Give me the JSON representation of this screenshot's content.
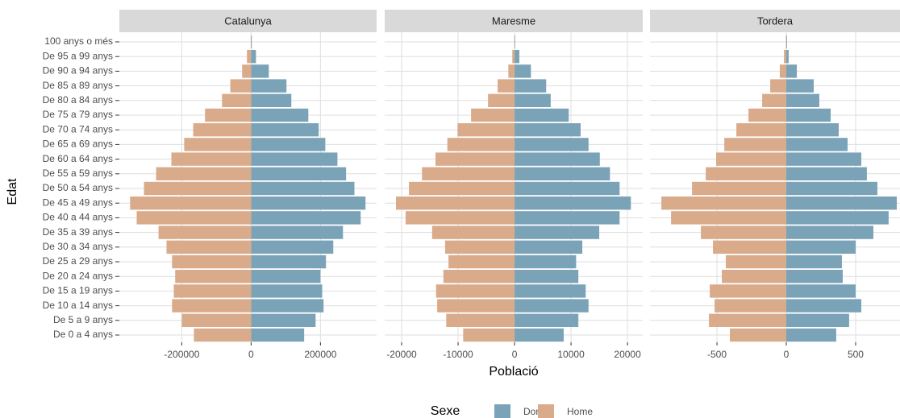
{
  "shared": {
    "x_label": "Població",
    "y_label": "Edat",
    "legend_title": "Sexe"
  },
  "chart_data": [
    {
      "type": "bar",
      "title": "Catalunya",
      "categories": [
        "100 anys o més",
        "De 95 a 99 anys",
        "De 90 a 94 anys",
        "De 85 a 89 anys",
        "De 80 a 84 anys",
        "De 75 a 79 anys",
        "De 70 a 74 anys",
        "De 65 a 69 anys",
        "De 60 a 64 anys",
        "De 55 a 59 anys",
        "De 50 a 54 anys",
        "De 45 a 49 anys",
        "De 40 a 44 anys",
        "De 35 a 39 anys",
        "De 30 a 34 anys",
        "De 25 a 29 anys",
        "De 20 a 24 anys",
        "De 15 a 19 anys",
        "De 10 a 14 anys",
        "De 5 a 9 anys",
        "De 0 a 4 anys"
      ],
      "series": [
        {
          "name": "Dona",
          "color": "#7ba3b8",
          "values": [
            2000,
            14000,
            51000,
            102000,
            116000,
            165000,
            195000,
            214000,
            249000,
            274000,
            298000,
            330000,
            316000,
            265000,
            237000,
            216000,
            200000,
            205000,
            209000,
            186000,
            153000
          ]
        },
        {
          "name": "Home",
          "color": "#d9ab8b",
          "values": [
            -1000,
            -12000,
            -26000,
            -60000,
            -84000,
            -133000,
            -167000,
            -193000,
            -230000,
            -274000,
            -309000,
            -349000,
            -330000,
            -267000,
            -244000,
            -228000,
            -219000,
            -223000,
            -228000,
            -200000,
            -165000
          ]
        }
      ],
      "xlim": [
        -380000,
        362000
      ],
      "xticks": [
        -200000,
        0,
        200000
      ],
      "grid": true
    },
    {
      "type": "bar",
      "title": "Maresme",
      "categories": [
        "100 anys o més",
        "De 95 a 99 anys",
        "De 90 a 94 anys",
        "De 85 a 89 anys",
        "De 80 a 84 anys",
        "De 75 a 79 anys",
        "De 70 a 74 anys",
        "De 65 a 69 anys",
        "De 60 a 64 anys",
        "De 55 a 59 anys",
        "De 50 a 54 anys",
        "De 45 a 49 anys",
        "De 40 a 44 anys",
        "De 35 a 39 anys",
        "De 30 a 34 anys",
        "De 25 a 29 anys",
        "De 20 a 24 anys",
        "De 15 a 19 anys",
        "De 10 a 14 anys",
        "De 5 a 9 anys",
        "De 0 a 4 anys"
      ],
      "series": [
        {
          "name": "Dona",
          "color": "#7ba3b8",
          "values": [
            100,
            850,
            2900,
            5600,
            6400,
            9600,
            11700,
            13100,
            15100,
            16900,
            18600,
            20600,
            18600,
            15000,
            12000,
            10900,
            11300,
            12600,
            13100,
            11300,
            8700
          ]
        },
        {
          "name": "Home",
          "color": "#d9ab8b",
          "values": [
            -50,
            -400,
            -1100,
            -3000,
            -4700,
            -7700,
            -10100,
            -11900,
            -14000,
            -16400,
            -18700,
            -21000,
            -19300,
            -14600,
            -12300,
            -11700,
            -12600,
            -13900,
            -13700,
            -12100,
            -9100
          ]
        }
      ],
      "xlim": [
        -23000,
        22700
      ],
      "xticks": [
        -20000,
        -10000,
        0,
        10000,
        20000
      ],
      "grid": true
    },
    {
      "type": "bar",
      "title": "Tordera",
      "categories": [
        "100 anys o més",
        "De 95 a 99 anys",
        "De 90 a 94 anys",
        "De 85 a 89 anys",
        "De 80 a 84 anys",
        "De 75 a 79 anys",
        "De 70 a 74 anys",
        "De 65 a 69 anys",
        "De 60 a 64 anys",
        "De 55 a 59 anys",
        "De 50 a 54 anys",
        "De 45 a 49 anys",
        "De 40 a 44 anys",
        "De 35 a 39 anys",
        "De 30 a 34 anys",
        "De 25 a 29 anys",
        "De 20 a 24 anys",
        "De 15 a 19 anys",
        "De 10 a 14 anys",
        "De 5 a 9 anys",
        "De 0 a 4 anys"
      ],
      "series": [
        {
          "name": "Dona",
          "color": "#7ba3b8",
          "values": [
            5,
            17,
            76,
            198,
            238,
            320,
            378,
            442,
            541,
            581,
            657,
            797,
            738,
            628,
            500,
            401,
            407,
            500,
            541,
            453,
            360
          ]
        },
        {
          "name": "Home",
          "color": "#d9ab8b",
          "values": [
            -2,
            -17,
            -47,
            -116,
            -174,
            -273,
            -360,
            -447,
            -506,
            -581,
            -680,
            -901,
            -831,
            -616,
            -529,
            -436,
            -465,
            -552,
            -517,
            -558,
            -407
          ]
        }
      ],
      "xlim": [
        -983,
        820
      ],
      "xticks": [
        -500,
        0,
        500
      ],
      "grid": true
    }
  ]
}
